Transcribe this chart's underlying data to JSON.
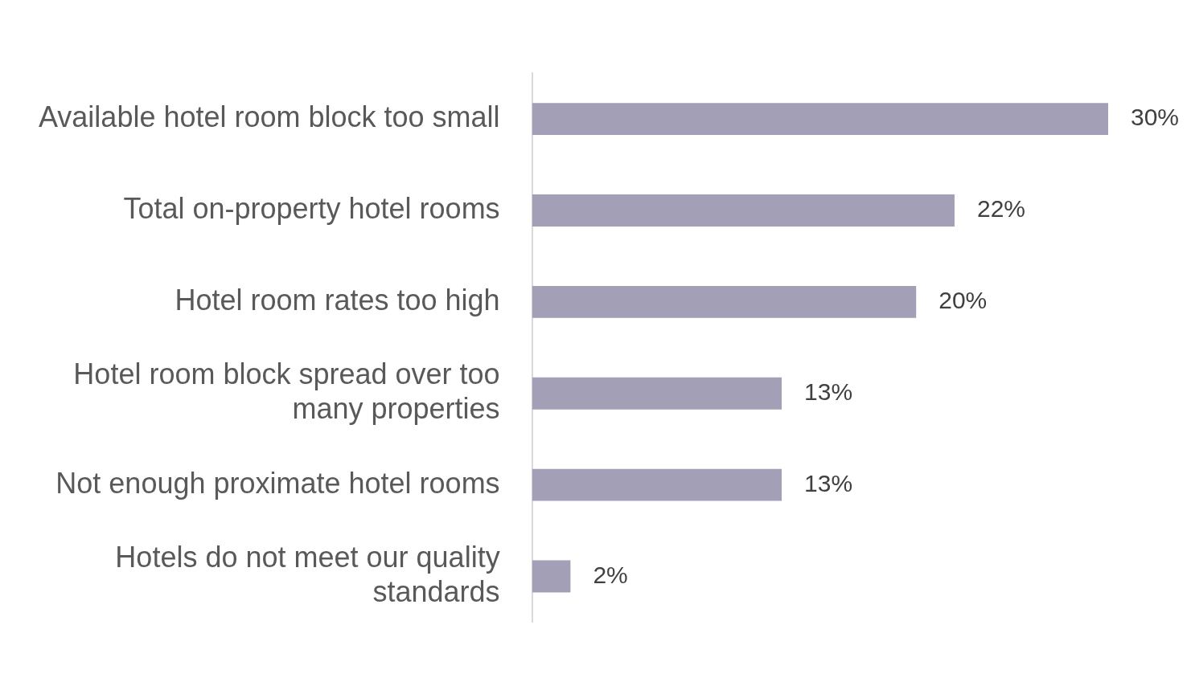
{
  "chart_data": {
    "type": "bar",
    "orientation": "horizontal",
    "categories": [
      "Available hotel room block too small",
      "Total on-property hotel rooms",
      "Hotel room rates too high",
      "Hotel room block spread over too many properties",
      "Not enough proximate hotel rooms",
      "Hotels do not meet our quality standards"
    ],
    "values": [
      30,
      22,
      20,
      13,
      13,
      2
    ],
    "value_labels": [
      "30%",
      "22%",
      "20%",
      "13%",
      "13%",
      "2%"
    ],
    "color": "#a39fb7"
  }
}
